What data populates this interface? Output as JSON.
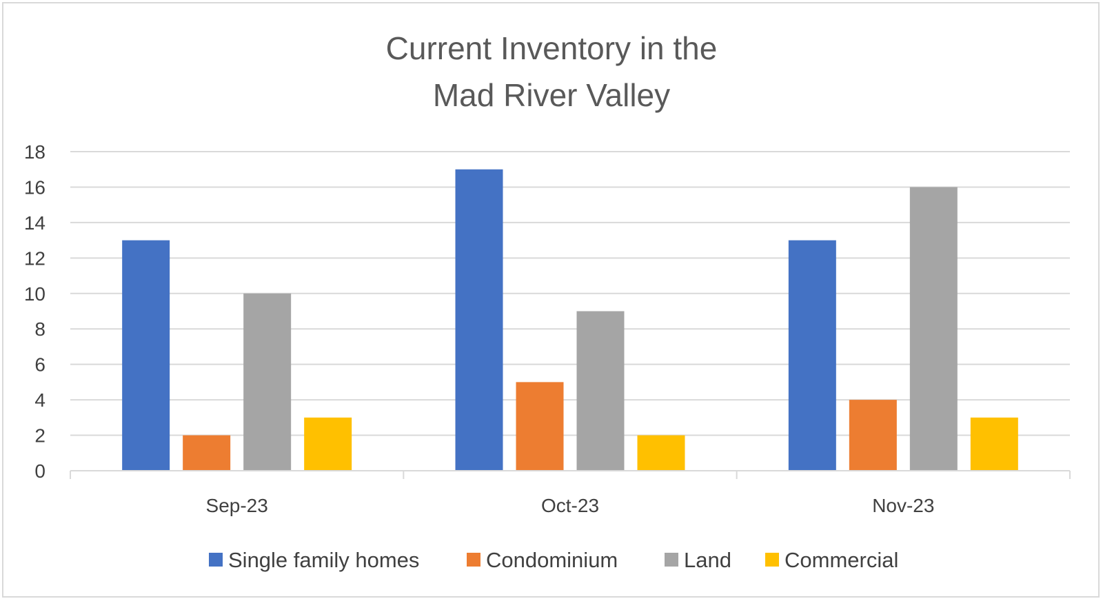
{
  "chart_data": {
    "type": "bar",
    "title": [
      "Current Inventory in the",
      "Mad River Valley"
    ],
    "categories": [
      "Sep-23",
      "Oct-23",
      "Nov-23"
    ],
    "series": [
      {
        "name": "Single family homes",
        "values": [
          13,
          17,
          13
        ],
        "color": "#4472C4"
      },
      {
        "name": "Condominium",
        "values": [
          2,
          5,
          4
        ],
        "color": "#ED7D31"
      },
      {
        "name": "Land",
        "values": [
          10,
          9,
          16
        ],
        "color": "#A5A5A5"
      },
      {
        "name": "Commercial",
        "values": [
          3,
          2,
          3
        ],
        "color": "#FFC000"
      }
    ],
    "ylim": [
      0,
      18
    ],
    "yticks": [
      0,
      2,
      4,
      6,
      8,
      10,
      12,
      14,
      16,
      18
    ],
    "grid": true,
    "legend_position": "bottom",
    "xlabel": "",
    "ylabel": ""
  }
}
